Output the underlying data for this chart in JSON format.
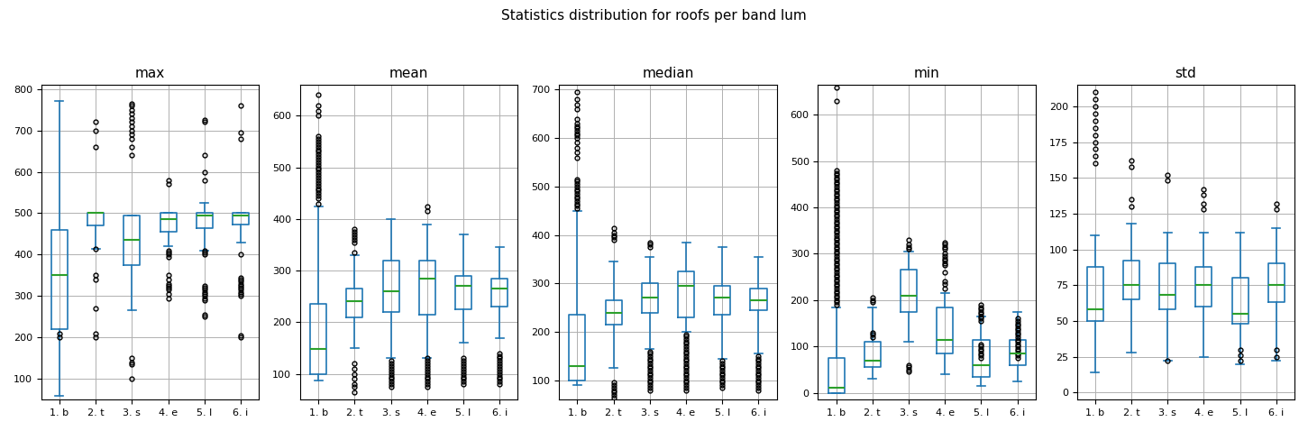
{
  "title": "Statistics distribution for roofs per band lum",
  "subplots": [
    "max",
    "mean",
    "median",
    "min",
    "std"
  ],
  "categories": [
    "1. b",
    "2. t",
    "3. s",
    "4. e",
    "5. l",
    "6. i"
  ],
  "box_color": "#1f77b4",
  "median_color": "#2ca02c",
  "background_color": "#ffffff",
  "grid_color": "#b0b0b0",
  "max": {
    "ylim": [
      50,
      810
    ],
    "yticks": [
      100,
      200,
      300,
      400,
      500,
      600,
      700,
      800
    ],
    "boxes": [
      {
        "q1": 220,
        "median": 350,
        "q3": 460,
        "whislo": 60,
        "whishi": 770,
        "fliers": [
          200,
          210
        ]
      },
      {
        "q1": 470,
        "median": 500,
        "q3": 500,
        "whislo": 415,
        "whishi": 500,
        "fliers": [
          200,
          210,
          270,
          340,
          350,
          415,
          660,
          700,
          720
        ]
      },
      {
        "q1": 375,
        "median": 435,
        "q3": 495,
        "whislo": 265,
        "whishi": 495,
        "fliers": [
          100,
          135,
          140,
          150,
          640,
          660,
          680,
          690,
          700,
          710,
          720,
          730,
          740,
          750,
          760,
          765
        ]
      },
      {
        "q1": 455,
        "median": 485,
        "q3": 500,
        "whislo": 420,
        "whishi": 500,
        "fliers": [
          295,
          305,
          315,
          320,
          325,
          330,
          340,
          350,
          395,
          400,
          405,
          410,
          570,
          580
        ]
      },
      {
        "q1": 465,
        "median": 495,
        "q3": 500,
        "whislo": 410,
        "whishi": 525,
        "fliers": [
          250,
          255,
          290,
          295,
          300,
          305,
          310,
          315,
          320,
          325,
          400,
          405,
          410,
          580,
          600,
          640,
          720,
          725
        ]
      },
      {
        "q1": 472,
        "median": 495,
        "q3": 500,
        "whislo": 430,
        "whishi": 500,
        "fliers": [
          200,
          205,
          300,
          305,
          310,
          315,
          320,
          325,
          330,
          335,
          340,
          345,
          400,
          680,
          695,
          760
        ]
      }
    ]
  },
  "mean": {
    "ylim": [
      50,
      660
    ],
    "yticks": [
      100,
      200,
      300,
      400,
      500,
      600
    ],
    "boxes": [
      {
        "q1": 100,
        "median": 148,
        "q3": 235,
        "whislo": 88,
        "whishi": 425,
        "fliers": [
          430,
          440,
          445,
          450,
          455,
          460,
          465,
          470,
          475,
          480,
          485,
          490,
          495,
          500,
          505,
          510,
          515,
          520,
          525,
          530,
          535,
          540,
          545,
          550,
          555,
          560,
          600,
          610,
          620,
          640
        ]
      },
      {
        "q1": 210,
        "median": 240,
        "q3": 265,
        "whislo": 150,
        "whishi": 330,
        "fliers": [
          65,
          75,
          80,
          90,
          100,
          110,
          120,
          335,
          355,
          360,
          365,
          370,
          375,
          380
        ]
      },
      {
        "q1": 220,
        "median": 260,
        "q3": 320,
        "whislo": 130,
        "whishi": 400,
        "fliers": [
          75,
          80,
          85,
          90,
          95,
          100,
          105,
          110,
          115,
          120,
          125
        ]
      },
      {
        "q1": 215,
        "median": 285,
        "q3": 320,
        "whislo": 130,
        "whishi": 390,
        "fliers": [
          75,
          80,
          85,
          90,
          95,
          100,
          105,
          110,
          115,
          120,
          125,
          130,
          415,
          425
        ]
      },
      {
        "q1": 225,
        "median": 270,
        "q3": 290,
        "whislo": 160,
        "whishi": 370,
        "fliers": [
          80,
          85,
          90,
          95,
          100,
          105,
          110,
          115,
          120,
          125,
          130
        ]
      },
      {
        "q1": 230,
        "median": 265,
        "q3": 285,
        "whislo": 170,
        "whishi": 345,
        "fliers": [
          80,
          85,
          90,
          95,
          100,
          105,
          110,
          115,
          120,
          125,
          130,
          135,
          140
        ]
      }
    ]
  },
  "median": {
    "ylim": [
      60,
      710
    ],
    "yticks": [
      100,
      200,
      300,
      400,
      500,
      600,
      700
    ],
    "boxes": [
      {
        "q1": 100,
        "median": 130,
        "q3": 235,
        "whislo": 90,
        "whishi": 450,
        "fliers": [
          455,
          460,
          465,
          470,
          475,
          480,
          485,
          490,
          495,
          500,
          505,
          510,
          515,
          560,
          570,
          580,
          590,
          600,
          605,
          610,
          615,
          620,
          625,
          630,
          640,
          660,
          670,
          680,
          695
        ]
      },
      {
        "q1": 215,
        "median": 240,
        "q3": 265,
        "whislo": 125,
        "whishi": 345,
        "fliers": [
          65,
          70,
          75,
          80,
          85,
          90,
          95,
          390,
          395,
          400,
          405,
          415
        ]
      },
      {
        "q1": 240,
        "median": 270,
        "q3": 300,
        "whislo": 165,
        "whishi": 355,
        "fliers": [
          80,
          85,
          90,
          95,
          100,
          105,
          110,
          115,
          120,
          125,
          130,
          135,
          140,
          145,
          150,
          155,
          160,
          375,
          380,
          385
        ]
      },
      {
        "q1": 230,
        "median": 295,
        "q3": 325,
        "whislo": 200,
        "whishi": 385,
        "fliers": [
          80,
          85,
          90,
          95,
          100,
          105,
          110,
          115,
          120,
          125,
          130,
          135,
          140,
          145,
          150,
          155,
          160,
          165,
          170,
          175,
          180,
          185,
          190,
          195
        ]
      },
      {
        "q1": 235,
        "median": 270,
        "q3": 295,
        "whislo": 145,
        "whishi": 375,
        "fliers": [
          85,
          90,
          95,
          100,
          105,
          110,
          115,
          120,
          125,
          130,
          135,
          140
        ]
      },
      {
        "q1": 245,
        "median": 265,
        "q3": 290,
        "whislo": 155,
        "whishi": 355,
        "fliers": [
          80,
          85,
          90,
          95,
          100,
          105,
          110,
          115,
          120,
          125,
          130,
          135,
          140,
          145,
          150
        ]
      }
    ]
  },
  "min": {
    "ylim": [
      -15,
      665
    ],
    "yticks": [
      0,
      100,
      200,
      300,
      400,
      500,
      600
    ],
    "boxes": [
      {
        "q1": 0,
        "median": 10,
        "q3": 75,
        "whislo": 0,
        "whishi": 185,
        "fliers": [
          190,
          195,
          200,
          205,
          210,
          215,
          220,
          225,
          230,
          235,
          240,
          245,
          250,
          255,
          260,
          265,
          270,
          275,
          280,
          285,
          290,
          295,
          300,
          305,
          310,
          315,
          320,
          325,
          330,
          335,
          340,
          345,
          350,
          355,
          360,
          365,
          370,
          375,
          380,
          385,
          390,
          395,
          400,
          405,
          410,
          415,
          420,
          425,
          430,
          435,
          440,
          445,
          450,
          455,
          460,
          465,
          470,
          475,
          480,
          630,
          660
        ]
      },
      {
        "q1": 55,
        "median": 70,
        "q3": 110,
        "whislo": 30,
        "whishi": 185,
        "fliers": [
          120,
          125,
          130,
          195,
          200,
          205
        ]
      },
      {
        "q1": 175,
        "median": 210,
        "q3": 265,
        "whislo": 110,
        "whishi": 305,
        "fliers": [
          45,
          50,
          55,
          60,
          310,
          315,
          320,
          330
        ]
      },
      {
        "q1": 85,
        "median": 115,
        "q3": 185,
        "whislo": 40,
        "whishi": 215,
        "fliers": [
          225,
          235,
          240,
          260,
          275,
          280,
          285,
          290,
          295,
          300,
          310,
          315,
          320,
          325
        ]
      },
      {
        "q1": 35,
        "median": 60,
        "q3": 115,
        "whislo": 15,
        "whishi": 165,
        "fliers": [
          75,
          80,
          85,
          90,
          95,
          100,
          105,
          155,
          160,
          165,
          170,
          175,
          180,
          185,
          190
        ]
      },
      {
        "q1": 60,
        "median": 85,
        "q3": 115,
        "whislo": 25,
        "whishi": 175,
        "fliers": [
          75,
          80,
          85,
          90,
          95,
          100,
          105,
          110,
          115,
          120,
          125,
          130,
          135,
          140,
          145,
          150,
          155,
          160
        ]
      }
    ]
  },
  "std": {
    "ylim": [
      -5,
      215
    ],
    "yticks": [
      0,
      25,
      50,
      75,
      100,
      125,
      150,
      175,
      200
    ],
    "boxes": [
      {
        "q1": 50,
        "median": 58,
        "q3": 88,
        "whislo": 14,
        "whishi": 110,
        "fliers": [
          160,
          165,
          170,
          175,
          180,
          185,
          190,
          195,
          200,
          205,
          210
        ]
      },
      {
        "q1": 65,
        "median": 75,
        "q3": 92,
        "whislo": 28,
        "whishi": 118,
        "fliers": [
          130,
          135,
          158,
          162
        ]
      },
      {
        "q1": 58,
        "median": 68,
        "q3": 90,
        "whislo": 22,
        "whishi": 112,
        "fliers": [
          22,
          148,
          152
        ]
      },
      {
        "q1": 60,
        "median": 75,
        "q3": 88,
        "whislo": 25,
        "whishi": 112,
        "fliers": [
          128,
          132,
          138,
          142
        ]
      },
      {
        "q1": 48,
        "median": 55,
        "q3": 80,
        "whislo": 20,
        "whishi": 112,
        "fliers": [
          22,
          26,
          30
        ]
      },
      {
        "q1": 63,
        "median": 75,
        "q3": 90,
        "whislo": 22,
        "whishi": 115,
        "fliers": [
          25,
          30,
          128,
          132
        ]
      }
    ]
  }
}
